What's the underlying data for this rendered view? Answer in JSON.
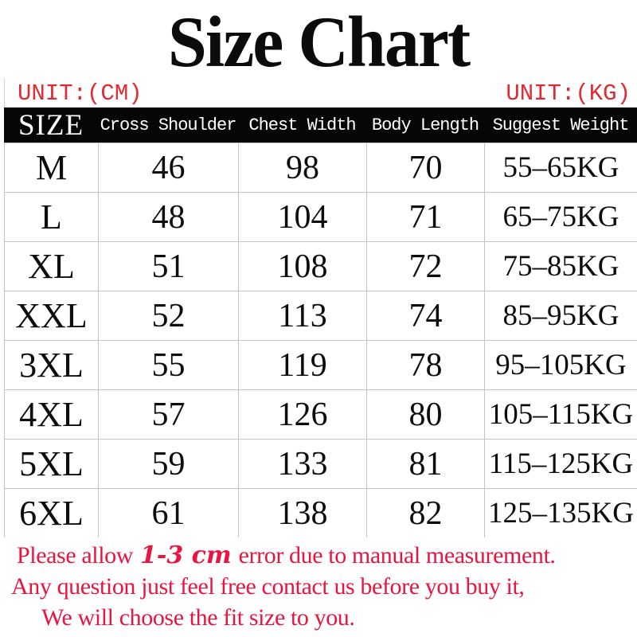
{
  "title": "Size Chart",
  "units": {
    "left": "UNIT:(CM)",
    "right": "UNIT:(KG)"
  },
  "chart_data": {
    "type": "table",
    "title": "Size Chart",
    "measurement_unit": "CM",
    "weight_unit": "KG",
    "columns": [
      "SIZE",
      "Cross Shoulder",
      "Chest Width",
      "Body Length",
      "Suggest Weight"
    ],
    "rows": [
      [
        "M",
        "46",
        "98",
        "70",
        "55–65KG"
      ],
      [
        "L",
        "48",
        "104",
        "71",
        "65–75KG"
      ],
      [
        "XL",
        "51",
        "108",
        "72",
        "75–85KG"
      ],
      [
        "XXL",
        "52",
        "113",
        "74",
        "85–95KG"
      ],
      [
        "3XL",
        "55",
        "119",
        "78",
        "95–105KG"
      ],
      [
        "4XL",
        "57",
        "126",
        "80",
        "105–115KG"
      ],
      [
        "5XL",
        "59",
        "133",
        "81",
        "115–125KG"
      ],
      [
        "6XL",
        "61",
        "138",
        "82",
        "125–135KG"
      ]
    ]
  },
  "footer": {
    "line1_prefix": "Please allow",
    "line1_emphasis": "1-3 cm",
    "line1_suffix": "error due to manual measurement.",
    "line2": "Any question just feel free contact us before you buy it,",
    "line3": "We will choose the fit size to you."
  },
  "colors": {
    "unit_red": "#e02b33",
    "footer_red": "#ea1440",
    "header_bg": "#060606",
    "header_fg": "#ffffff",
    "grid": "#c4c4c4"
  }
}
